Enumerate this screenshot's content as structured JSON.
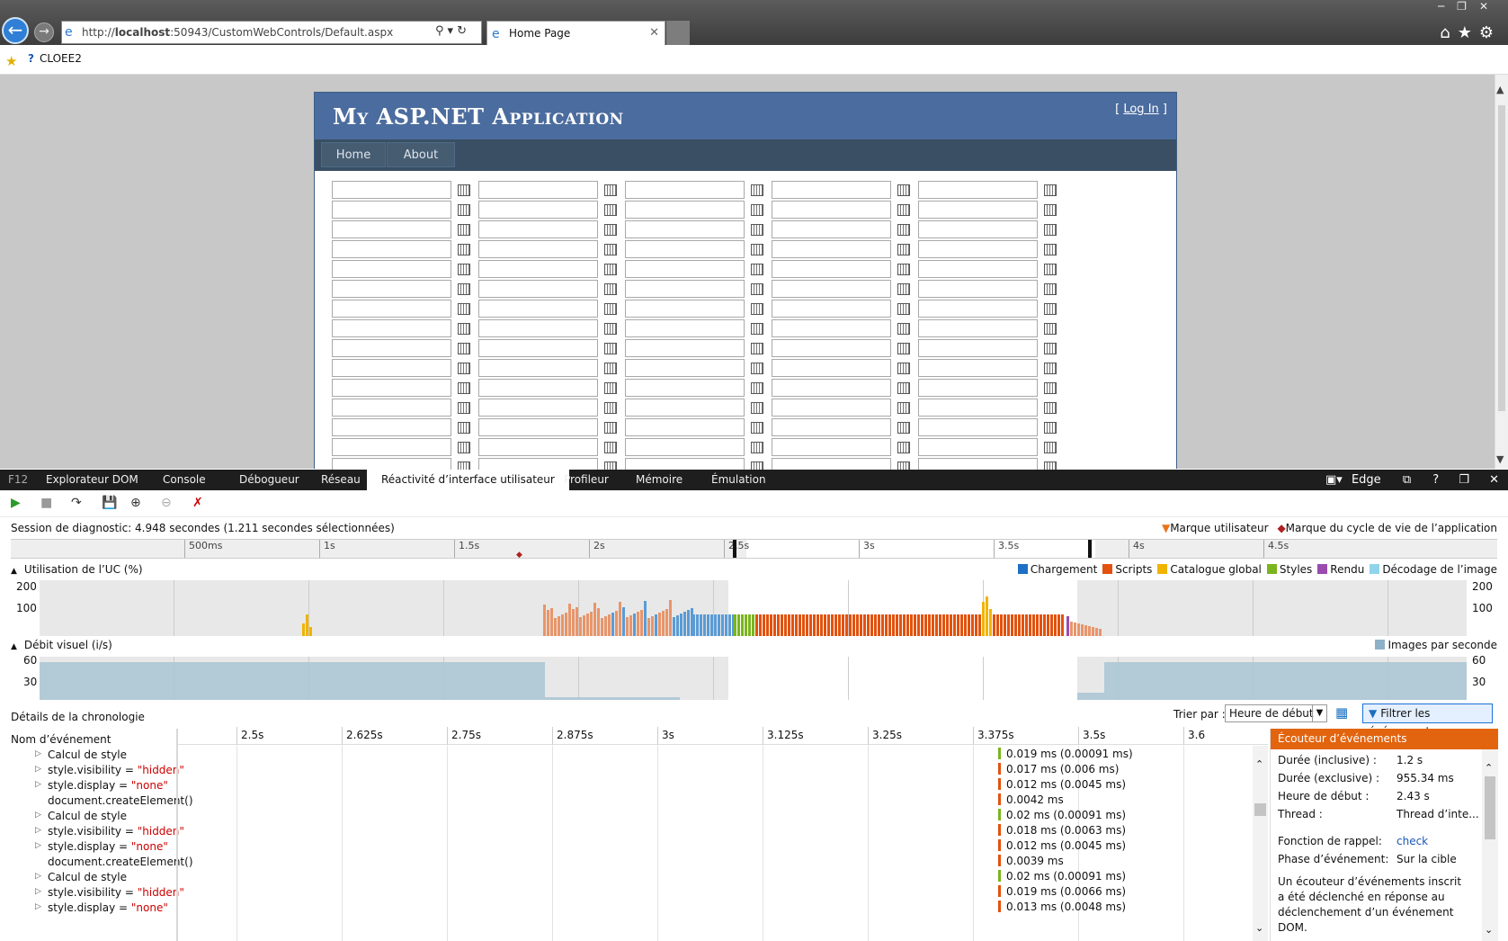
{
  "browser": {
    "url_prefix": "http://",
    "url_host": "localhost",
    "url_rest": ":50943/CustomWebControls/Default.aspx",
    "tab_title": "Home Page",
    "favorite": "CLOEE2"
  },
  "site": {
    "title": "My ASP.NET Application",
    "login_open": "[ ",
    "login_link": "Log In",
    "login_close": " ]",
    "menu": [
      "Home",
      "About"
    ]
  },
  "devtools": {
    "f12": "F12",
    "tabs": [
      "Explorateur DOM",
      "Console",
      "Débogueur",
      "Réseau",
      "Réactivité d’interface utilisateur",
      "Profileur",
      "Mémoire",
      "Émulation"
    ],
    "mode": "Edge",
    "help": "?",
    "session": "Session de diagnostic: 4.948 secondes (1.211 secondes sélectionnées)",
    "user_mark": "Marque utilisateur",
    "app_mark": "Marque du cycle de vie de l’application",
    "ruler_ticks": [
      "500ms",
      "1s",
      "1.5s",
      "2s",
      "2.5s",
      "3s",
      "3.5s",
      "4s",
      "4.5s"
    ],
    "cpu_title": "Utilisation de l’UC (%)",
    "cpu_y": [
      "200",
      "100"
    ],
    "cpu_legend": [
      {
        "label": "Chargement",
        "color": "#1e6fc6"
      },
      {
        "label": "Scripts",
        "color": "#e2520e"
      },
      {
        "label": "Catalogue global",
        "color": "#f0b400"
      },
      {
        "label": "Styles",
        "color": "#7ab51d"
      },
      {
        "label": "Rendu",
        "color": "#9b4bb0"
      },
      {
        "label": "Décodage de l’image",
        "color": "#8fd4ea"
      }
    ],
    "fps_title": "Débit visuel (i/s)",
    "fps_y": [
      "60",
      "30"
    ],
    "fps_legend": "Images par seconde",
    "details_title": "Détails de la chronologie",
    "sort_label": "Trier par :",
    "sort_value": "Heure de début",
    "filter": "Filtrer les événements",
    "event_col": "Nom d’événement",
    "time_ticks": [
      "2.5s",
      "2.625s",
      "2.75s",
      "2.875s",
      "3s",
      "3.125s",
      "3.25s",
      "3.375s",
      "3.5s",
      "3.6"
    ],
    "events": [
      {
        "name": "Calcul de style",
        "val": "",
        "exp": true
      },
      {
        "name": "style.visibility = ",
        "val": "\"hidden\"",
        "exp": true
      },
      {
        "name": "style.display = ",
        "val": "\"none\"",
        "exp": true
      },
      {
        "name": "document.createElement()",
        "val": "",
        "exp": false
      },
      {
        "name": "Calcul de style",
        "val": "",
        "exp": true
      },
      {
        "name": "style.visibility = ",
        "val": "\"hidden\"",
        "exp": true
      },
      {
        "name": "style.display = ",
        "val": "\"none\"",
        "exp": true
      },
      {
        "name": "document.createElement()",
        "val": "",
        "exp": false
      },
      {
        "name": "Calcul de style",
        "val": "",
        "exp": true
      },
      {
        "name": "style.visibility = ",
        "val": "\"hidden\"",
        "exp": true
      },
      {
        "name": "style.display = ",
        "val": "\"none\"",
        "exp": true
      }
    ],
    "durations": [
      {
        "text": "0.019 ms (0.00091 ms)",
        "color": "#7ab51d"
      },
      {
        "text": "0.017 ms (0.006 ms)",
        "color": "#e2520e"
      },
      {
        "text": "0.012 ms (0.0045 ms)",
        "color": "#e2520e"
      },
      {
        "text": "0.0042 ms",
        "color": "#e2520e"
      },
      {
        "text": "0.02 ms (0.00091 ms)",
        "color": "#7ab51d"
      },
      {
        "text": "0.018 ms (0.0063 ms)",
        "color": "#e2520e"
      },
      {
        "text": "0.012 ms (0.0045 ms)",
        "color": "#e2520e"
      },
      {
        "text": "0.0039 ms",
        "color": "#e2520e"
      },
      {
        "text": "0.02 ms (0.00091 ms)",
        "color": "#7ab51d"
      },
      {
        "text": "0.019 ms (0.0066 ms)",
        "color": "#e2520e"
      },
      {
        "text": "0.013 ms (0.0048 ms)",
        "color": "#e2520e"
      }
    ],
    "panel": {
      "title": "Écouteur d’événements",
      "rows": [
        {
          "k": "Durée (inclusive) :",
          "v": "1.2 s"
        },
        {
          "k": "Durée (exclusive) :",
          "v": "955.34 ms"
        },
        {
          "k": "Heure de début :",
          "v": "2.43 s"
        },
        {
          "k": "Thread :",
          "v": "Thread d’inte..."
        },
        {
          "k": "Fonction de rappel:",
          "v": "check"
        },
        {
          "k": "Phase d’événement:",
          "v": "Sur la cible"
        }
      ],
      "desc": "Un écouteur d’événements inscrit a été déclenché en réponse au déclenchement d’un événement DOM."
    }
  }
}
